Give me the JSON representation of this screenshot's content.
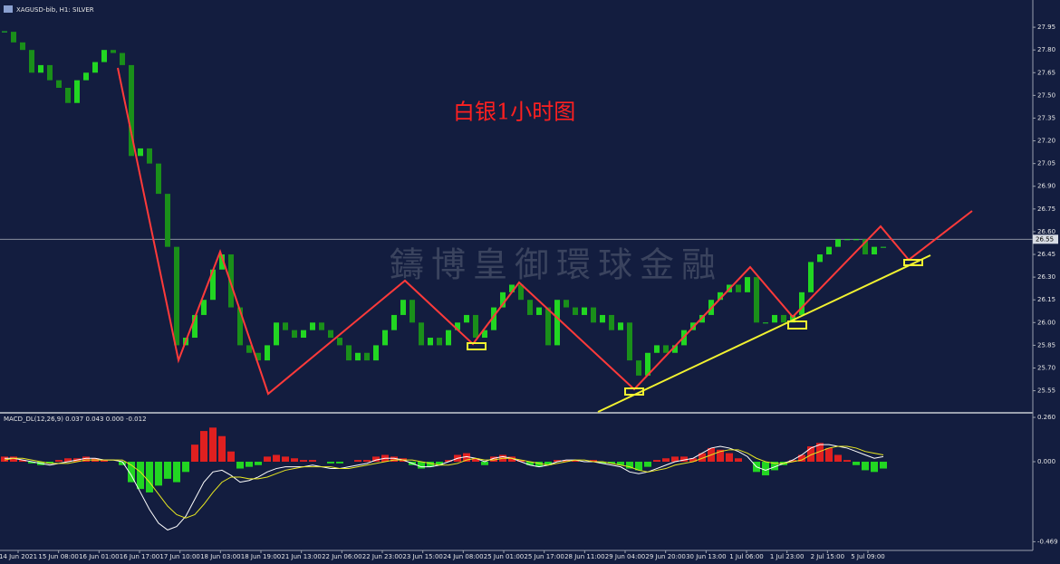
{
  "chart_data": {
    "type": "candlestick",
    "title": "XAGUSD-bib, H1:  SILVER",
    "annotation": "白银1小时图",
    "watermark": "鑄博皇御環球金融",
    "x_labels": [
      "14 Jun 2021",
      "15 Jun 08:00",
      "16 Jun 01:00",
      "16 Jun 17:00",
      "17 Jun 10:00",
      "18 Jun 03:00",
      "18 Jun 19:00",
      "21 Jun 13:00",
      "22 Jun 06:00",
      "22 Jun 23:00",
      "23 Jun 15:00",
      "24 Jun 08:00",
      "25 Jun 01:00",
      "25 Jun 17:00",
      "28 Jun 11:00",
      "29 Jun 04:00",
      "29 Jun 20:00",
      "30 Jun 13:00",
      "1 Jul 06:00",
      "1 Jul 23:00",
      "2 Jul 15:00",
      "5 Jul 09:00"
    ],
    "close": [
      27.92,
      27.85,
      27.8,
      27.65,
      27.7,
      27.6,
      27.55,
      27.45,
      27.6,
      27.65,
      27.72,
      27.8,
      27.78,
      27.7,
      27.1,
      27.15,
      27.05,
      26.85,
      26.5,
      25.85,
      25.9,
      26.05,
      26.15,
      26.35,
      26.45,
      26.1,
      25.85,
      25.8,
      25.75,
      25.85,
      26.0,
      25.95,
      25.9,
      25.95,
      26.0,
      25.95,
      25.9,
      25.85,
      25.75,
      25.8,
      25.75,
      25.85,
      25.95,
      26.05,
      26.15,
      26.0,
      25.85,
      25.9,
      25.85,
      25.95,
      26.0,
      26.05,
      25.9,
      25.95,
      26.1,
      26.2,
      26.25,
      26.15,
      26.05,
      26.1,
      25.85,
      26.15,
      26.1,
      26.05,
      26.1,
      26.0,
      26.05,
      25.95,
      26.0,
      25.75,
      25.65,
      25.8,
      25.85,
      25.8,
      25.85,
      25.95,
      26.0,
      26.05,
      26.15,
      26.2,
      26.25,
      26.2,
      26.3,
      26.0,
      26.0,
      26.05,
      26.0,
      26.05,
      26.2,
      26.4,
      26.45,
      26.5,
      26.55,
      26.55,
      26.55,
      26.45,
      26.5,
      26.5
    ],
    "up_color": "#22d622",
    "down_color": "#1a8f1a",
    "price_line": 26.55,
    "ylim": [
      25.41,
      28.1
    ],
    "yticks": [
      27.95,
      {
        "value": 27.8,
        "label": "27.80"
      },
      27.65,
      {
        "value": 27.5,
        "label": "27.50"
      },
      27.35,
      {
        "value": 27.2,
        "label": "27.20"
      },
      27.05,
      {
        "value": 26.9,
        "label": "26.90"
      },
      26.75,
      {
        "value": 26.6,
        "label": "26.60"
      },
      26.45,
      {
        "value": 26.3,
        "label": "26.30"
      },
      26.15,
      {
        "value": 26.0,
        "label": "26.00"
      },
      25.85,
      {
        "value": 25.7,
        "label": "25.70"
      },
      25.55
    ],
    "macd": {
      "label": "MACD_DL(12,26,9) 0.037 0.043 0.000 -0.012",
      "histogram": [
        0.03,
        0.03,
        0.01,
        -0.01,
        -0.02,
        -0.01,
        0.01,
        0.02,
        0.02,
        0.03,
        0.02,
        0.01,
        0.0,
        -0.02,
        -0.12,
        -0.16,
        -0.18,
        -0.14,
        -0.1,
        -0.12,
        -0.06,
        0.1,
        0.18,
        0.2,
        0.15,
        0.06,
        -0.04,
        -0.03,
        -0.02,
        0.03,
        0.04,
        0.03,
        0.02,
        0.01,
        0.01,
        0.0,
        -0.01,
        -0.01,
        0.0,
        0.01,
        0.01,
        0.03,
        0.04,
        0.03,
        0.02,
        -0.02,
        -0.04,
        -0.03,
        -0.02,
        0.01,
        0.04,
        0.05,
        0.02,
        -0.02,
        0.03,
        0.04,
        0.03,
        0.01,
        -0.02,
        -0.03,
        -0.02,
        0.01,
        0.01,
        0.01,
        0.0,
        0.01,
        -0.01,
        -0.01,
        -0.02,
        -0.04,
        -0.05,
        -0.03,
        0.01,
        0.02,
        0.03,
        0.03,
        0.02,
        0.05,
        0.08,
        0.07,
        0.05,
        0.02,
        0.0,
        -0.06,
        -0.08,
        -0.05,
        -0.02,
        0.01,
        0.04,
        0.09,
        0.11,
        0.08,
        0.04,
        0.01,
        -0.02,
        -0.05,
        -0.06,
        -0.04
      ],
      "pos_color": "#e02020",
      "neg_color": "#22d622",
      "series": [
        {
          "color": "#ffffff",
          "values": [
            0.02,
            0.02,
            0.01,
            0.0,
            -0.01,
            -0.02,
            -0.01,
            0.0,
            0.01,
            0.02,
            0.02,
            0.01,
            0.01,
            0.0,
            -0.08,
            -0.18,
            -0.28,
            -0.36,
            -0.4,
            -0.38,
            -0.32,
            -0.22,
            -0.12,
            -0.06,
            -0.05,
            -0.08,
            -0.12,
            -0.11,
            -0.09,
            -0.06,
            -0.04,
            -0.03,
            -0.03,
            -0.03,
            -0.02,
            -0.03,
            -0.04,
            -0.04,
            -0.03,
            -0.02,
            -0.01,
            0.01,
            0.02,
            0.02,
            0.01,
            -0.01,
            -0.03,
            -0.03,
            -0.02,
            0.0,
            0.02,
            0.03,
            0.02,
            0.0,
            0.02,
            0.03,
            0.02,
            0.0,
            -0.02,
            -0.03,
            -0.02,
            0.0,
            0.01,
            0.01,
            0.0,
            0.0,
            -0.01,
            -0.02,
            -0.03,
            -0.06,
            -0.07,
            -0.06,
            -0.04,
            -0.02,
            0.0,
            0.01,
            0.02,
            0.05,
            0.08,
            0.09,
            0.08,
            0.06,
            0.03,
            -0.03,
            -0.05,
            -0.03,
            -0.01,
            0.01,
            0.04,
            0.08,
            0.1,
            0.1,
            0.09,
            0.08,
            0.06,
            0.04,
            0.02,
            0.03
          ]
        },
        {
          "color": "#e8e820",
          "values": [
            0.01,
            0.02,
            0.02,
            0.01,
            0.0,
            -0.01,
            -0.01,
            -0.01,
            0.0,
            0.01,
            0.01,
            0.01,
            0.01,
            0.01,
            -0.02,
            -0.06,
            -0.12,
            -0.19,
            -0.26,
            -0.31,
            -0.33,
            -0.31,
            -0.25,
            -0.18,
            -0.12,
            -0.09,
            -0.09,
            -0.1,
            -0.1,
            -0.09,
            -0.07,
            -0.05,
            -0.04,
            -0.03,
            -0.03,
            -0.03,
            -0.03,
            -0.04,
            -0.04,
            -0.03,
            -0.02,
            -0.01,
            0.0,
            0.01,
            0.01,
            0.01,
            0.0,
            -0.01,
            -0.02,
            -0.02,
            -0.01,
            0.01,
            0.02,
            0.01,
            0.01,
            0.02,
            0.02,
            0.01,
            0.0,
            -0.01,
            -0.02,
            -0.01,
            0.0,
            0.01,
            0.01,
            0.0,
            0.0,
            -0.01,
            -0.02,
            -0.03,
            -0.05,
            -0.06,
            -0.05,
            -0.04,
            -0.02,
            -0.01,
            0.0,
            0.02,
            0.04,
            0.06,
            0.07,
            0.07,
            0.05,
            0.02,
            0.0,
            -0.01,
            -0.01,
            0.0,
            0.01,
            0.04,
            0.06,
            0.08,
            0.09,
            0.09,
            0.08,
            0.06,
            0.05,
            0.04
          ]
        }
      ],
      "ylim": [
        -0.52,
        0.276
      ],
      "yticks": [
        {
          "value": 0.26,
          "label": "0.260"
        },
        {
          "value": 0,
          "label": "0.000"
        },
        -0.469
      ]
    }
  }
}
